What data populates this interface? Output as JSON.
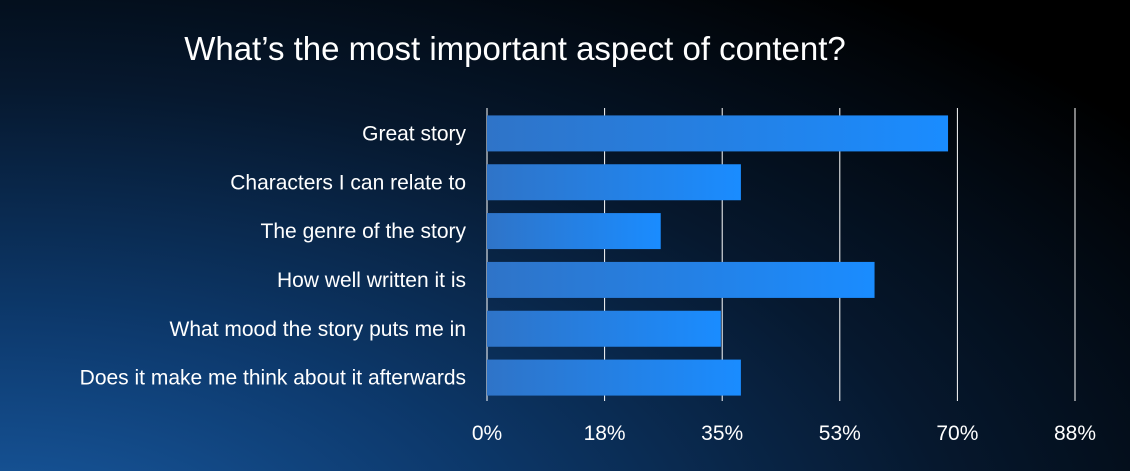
{
  "title": "What’s the most important aspect of content?",
  "colors": {
    "bar_start": "#2f74c8",
    "bar_end": "#1a8cff",
    "grid": "#ffffff",
    "text": "#ffffff"
  },
  "chart_data": {
    "type": "bar",
    "orientation": "horizontal",
    "title": "What’s the most important aspect of content?",
    "categories": [
      "Great story",
      "Characters I can relate to",
      "The genre of the story",
      "How well written it is",
      "What mood the story puts me in",
      "Does it make me think about it afterwards"
    ],
    "values": [
      69,
      38,
      26,
      58,
      35,
      38
    ],
    "xlim": [
      0,
      88
    ],
    "xticks": [
      "0%",
      "18%",
      "35%",
      "53%",
      "70%",
      "88%"
    ],
    "grid": true,
    "legend": "none"
  }
}
